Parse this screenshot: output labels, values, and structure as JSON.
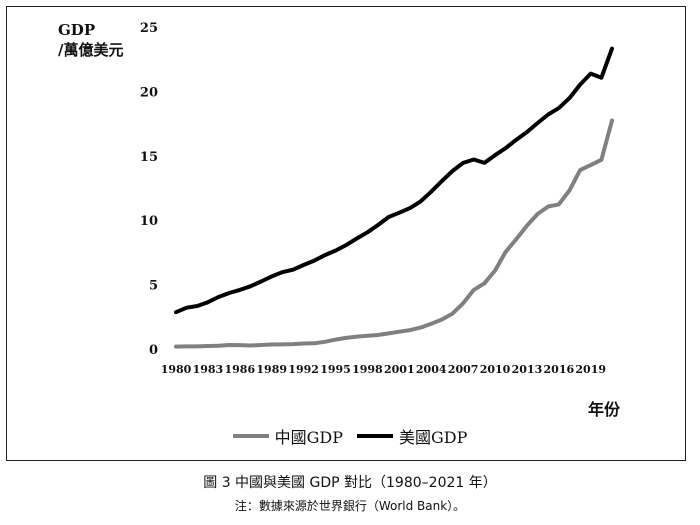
{
  "chart_data": {
    "type": "line",
    "ylabel": [
      "GDP",
      "/萬億美元"
    ],
    "xlabel": "年份",
    "ylim": [
      0,
      25
    ],
    "yticks": [
      0,
      5,
      10,
      15,
      20,
      25
    ],
    "xlim": [
      1980,
      2021
    ],
    "xticks": [
      1980,
      1983,
      1986,
      1989,
      1992,
      1995,
      1998,
      2001,
      2004,
      2007,
      2010,
      2013,
      2016,
      2019
    ],
    "grid": false,
    "legend_position": "bottom",
    "series": [
      {
        "name": "中國GDP",
        "color": "#808080",
        "x": [
          1980,
          1981,
          1982,
          1983,
          1984,
          1985,
          1986,
          1987,
          1988,
          1989,
          1990,
          1991,
          1992,
          1993,
          1994,
          1995,
          1996,
          1997,
          1998,
          1999,
          2000,
          2001,
          2002,
          2003,
          2004,
          2005,
          2006,
          2007,
          2008,
          2009,
          2010,
          2011,
          2012,
          2013,
          2014,
          2015,
          2016,
          2017,
          2018,
          2019,
          2020,
          2021
        ],
        "values": [
          0.19,
          0.2,
          0.2,
          0.23,
          0.26,
          0.31,
          0.3,
          0.27,
          0.31,
          0.35,
          0.36,
          0.38,
          0.43,
          0.44,
          0.56,
          0.73,
          0.86,
          0.96,
          1.03,
          1.09,
          1.21,
          1.34,
          1.47,
          1.66,
          1.96,
          2.29,
          2.75,
          3.55,
          4.59,
          5.1,
          6.09,
          7.55,
          8.53,
          9.57,
          10.48,
          11.06,
          11.23,
          12.31,
          13.89,
          14.28,
          14.69,
          17.73
        ]
      },
      {
        "name": "美國GDP",
        "color": "#000000",
        "x": [
          1980,
          1981,
          1982,
          1983,
          1984,
          1985,
          1986,
          1987,
          1988,
          1989,
          1990,
          1991,
          1992,
          1993,
          1994,
          1995,
          1996,
          1997,
          1998,
          1999,
          2000,
          2001,
          2002,
          2003,
          2004,
          2005,
          2006,
          2007,
          2008,
          2009,
          2010,
          2011,
          2012,
          2013,
          2014,
          2015,
          2016,
          2017,
          2018,
          2019,
          2020,
          2021
        ],
        "values": [
          2.86,
          3.21,
          3.34,
          3.63,
          4.04,
          4.35,
          4.59,
          4.87,
          5.24,
          5.64,
          5.96,
          6.16,
          6.52,
          6.86,
          7.29,
          7.64,
          8.07,
          8.58,
          9.06,
          9.63,
          10.25,
          10.58,
          10.94,
          11.46,
          12.21,
          13.04,
          13.82,
          14.45,
          14.71,
          14.45,
          15.05,
          15.6,
          16.25,
          16.84,
          17.55,
          18.21,
          18.7,
          19.48,
          20.53,
          21.38,
          21.06,
          23.32
        ]
      }
    ]
  },
  "caption": {
    "title": "圖 3 中國與美國 GDP 對比（1980–2021 年）",
    "note": "注：數據來源於世界銀行（World Bank）。"
  }
}
